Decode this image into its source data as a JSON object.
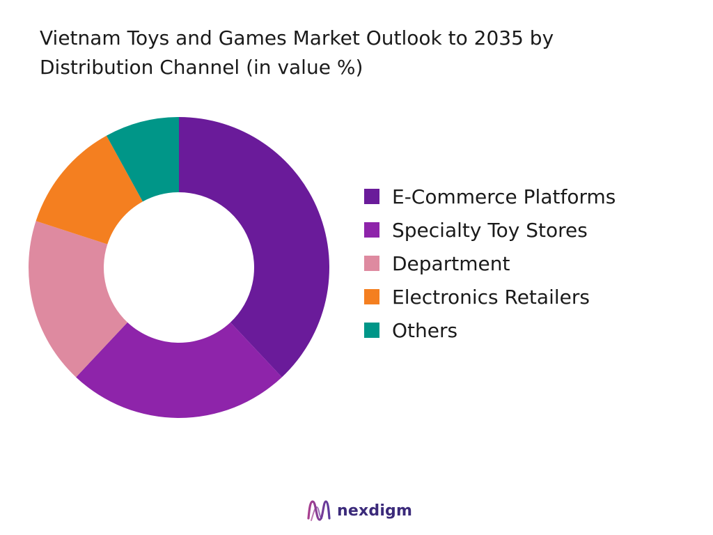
{
  "chart_data": {
    "type": "pie",
    "title": "Vietnam Toys and Games Market Outlook to 2035 by Distribution Channel (in value %)",
    "categories": [
      "E-Commerce Platforms",
      "Specialty Toy Stores",
      "Department",
      "Electronics Retailers",
      "Others"
    ],
    "values": [
      38,
      24,
      18,
      12,
      8
    ],
    "colors": [
      "#6a1b9a",
      "#8e24aa",
      "#de8aa0",
      "#f47f20",
      "#009688"
    ],
    "legend": "right",
    "donut": true
  },
  "brand": {
    "name": "nexdigm",
    "icon": "nexdigm-logo-icon",
    "colors": [
      "#a93f8f",
      "#5b3a9c"
    ]
  }
}
